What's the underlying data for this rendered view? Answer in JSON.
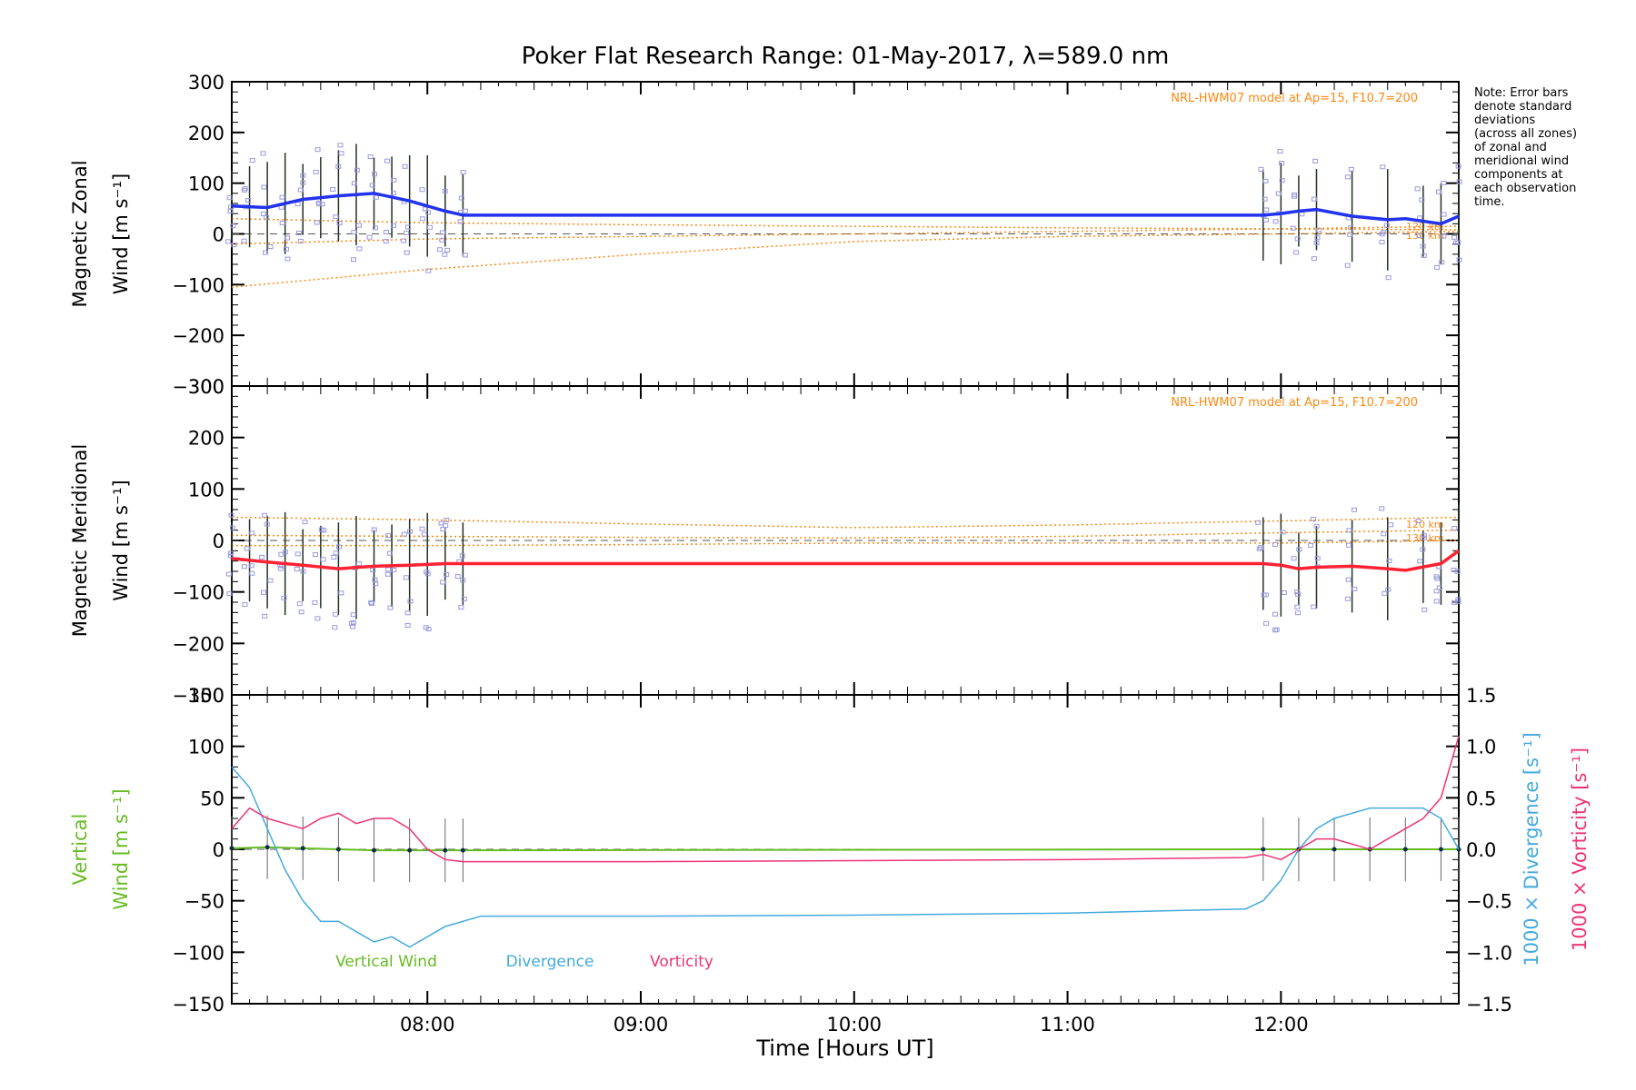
{
  "title": "Poker Flat Research Range: 01-May-2017, λ=589.0 nm",
  "note": [
    "Note: Error bars",
    "denote standard",
    "deviations",
    "(across all zones)",
    "of zonal and",
    "meridional wind",
    "components at",
    "each observation",
    "time."
  ],
  "model_label": "NRL-HWM07 model at Ap=15, F10.7=200",
  "height_labels": [
    "120 km",
    "130 km"
  ],
  "xlabel": "Time [Hours UT]",
  "x_ticks": [
    "08:00",
    "09:00",
    "10:00",
    "11:00",
    "12:00"
  ],
  "colors": {
    "zonal": "#2233ee",
    "meridional": "#ff2233",
    "model": "#ff8811",
    "zone_points": "#9999dd",
    "vertical": "#66bb22",
    "divergence": "#44aadd",
    "vorticity": "#ee3377",
    "vertical_points": "#103040"
  },
  "chart_data": [
    {
      "type": "line",
      "panel": "zonal",
      "ylabel": [
        "Magnetic Zonal",
        "Wind [m s⁻¹]"
      ],
      "y_ticks": [
        "300",
        "200",
        "100",
        "0",
        "−100",
        "−200",
        "−300"
      ],
      "ylim": [
        -300,
        300
      ],
      "xlim": [
        "07:05",
        "12:50"
      ],
      "series": [
        {
          "x": [
            "07:05",
            "07:15",
            "07:25",
            "07:35",
            "07:45",
            "07:55",
            "08:05",
            "08:10",
            "11:55",
            "12:00",
            "12:05",
            "12:10",
            "12:20",
            "12:30",
            "12:35",
            "12:45",
            "12:50"
          ],
          "values": [
            55,
            52,
            68,
            75,
            80,
            65,
            45,
            37,
            37,
            40,
            45,
            48,
            35,
            28,
            30,
            20,
            35
          ]
        }
      ],
      "error_bars_at": [
        "07:05",
        "07:10",
        "07:15",
        "07:20",
        "07:25",
        "07:30",
        "07:35",
        "07:40",
        "07:45",
        "07:50",
        "07:55",
        "08:00",
        "08:05",
        "08:10",
        "11:55",
        "12:00",
        "12:05",
        "12:10",
        "12:20",
        "12:30",
        "12:40",
        "12:45",
        "12:50"
      ],
      "model_curves": [
        {
          "x": [
            "07:05",
            "08:00",
            "09:00",
            "10:00",
            "11:00",
            "12:00",
            "12:50"
          ],
          "values": [
            -105,
            -70,
            -40,
            -15,
            -5,
            0,
            5
          ]
        },
        {
          "x": [
            "07:05",
            "08:00",
            "09:00",
            "10:00",
            "11:00",
            "12:00",
            "12:50"
          ],
          "values": [
            -20,
            -10,
            -5,
            0,
            5,
            10,
            15
          ]
        },
        {
          "x": [
            "07:05",
            "08:00",
            "09:00",
            "10:00",
            "11:00",
            "12:00",
            "12:50"
          ],
          "values": [
            30,
            22,
            18,
            15,
            12,
            10,
            8
          ]
        }
      ]
    },
    {
      "type": "line",
      "panel": "meridional",
      "ylabel": [
        "Magnetic Meridional",
        "Wind [m s⁻¹]"
      ],
      "y_ticks": [
        "300",
        "200",
        "100",
        "0",
        "−100",
        "−200",
        "−300"
      ],
      "ylim": [
        -300,
        300
      ],
      "xlim": [
        "07:05",
        "12:50"
      ],
      "series": [
        {
          "x": [
            "07:05",
            "07:15",
            "07:25",
            "07:35",
            "07:45",
            "07:55",
            "08:05",
            "08:10",
            "11:55",
            "12:00",
            "12:05",
            "12:10",
            "12:20",
            "12:30",
            "12:35",
            "12:45",
            "12:50"
          ],
          "values": [
            -35,
            -42,
            -48,
            -55,
            -50,
            -48,
            -45,
            -45,
            -45,
            -48,
            -55,
            -52,
            -50,
            -55,
            -58,
            -45,
            -20
          ]
        }
      ],
      "error_bars_at": [
        "07:05",
        "07:10",
        "07:15",
        "07:20",
        "07:25",
        "07:30",
        "07:35",
        "07:40",
        "07:45",
        "07:50",
        "07:55",
        "08:00",
        "08:05",
        "08:10",
        "11:55",
        "12:00",
        "12:05",
        "12:10",
        "12:20",
        "12:30",
        "12:40",
        "12:45",
        "12:50"
      ],
      "model_curves": [
        {
          "x": [
            "07:05",
            "08:00",
            "09:00",
            "10:00",
            "11:00",
            "12:00",
            "12:50"
          ],
          "values": [
            45,
            40,
            32,
            25,
            30,
            38,
            45
          ]
        },
        {
          "x": [
            "07:05",
            "08:00",
            "09:00",
            "10:00",
            "11:00",
            "12:00",
            "12:50"
          ],
          "values": [
            10,
            8,
            6,
            5,
            8,
            15,
            20
          ]
        },
        {
          "x": [
            "07:05",
            "08:00",
            "09:00",
            "10:00",
            "11:00",
            "12:00",
            "12:50"
          ],
          "values": [
            -10,
            -10,
            -8,
            -5,
            -5,
            -5,
            0
          ]
        }
      ]
    },
    {
      "type": "line",
      "panel": "vertical",
      "ylabel_left": [
        "Vertical",
        "Wind [m s⁻¹]"
      ],
      "ylabel_right_1": "1000 × Divergence [s⁻¹]",
      "ylabel_right_2": "1000 × Vorticity [s⁻¹]",
      "y_ticks": [
        "150",
        "100",
        "50",
        "0",
        "−50",
        "−100",
        "−150"
      ],
      "y2_ticks": [
        "1.5",
        "1.0",
        "0.5",
        "0.0",
        "−0.5",
        "−1.0",
        "−1.5"
      ],
      "ylim": [
        -150,
        150
      ],
      "y2lim": [
        -1.5,
        1.5
      ],
      "xlim": [
        "07:05",
        "12:50"
      ],
      "legend": [
        "Vertical Wind",
        "Divergence",
        "Vorticity"
      ],
      "series": [
        {
          "name": "Vertical Wind",
          "axis": "left",
          "x": [
            "07:05",
            "07:15",
            "07:25",
            "07:35",
            "07:45",
            "07:55",
            "08:05",
            "08:10",
            "11:55",
            "12:05",
            "12:15",
            "12:25",
            "12:35",
            "12:45",
            "12:50"
          ],
          "values": [
            1,
            2,
            1,
            0,
            -1,
            -1,
            -1,
            -1,
            0,
            0,
            0,
            0,
            0,
            0,
            0
          ]
        },
        {
          "name": "Divergence",
          "axis": "right",
          "x": [
            "07:05",
            "07:10",
            "07:15",
            "07:20",
            "07:25",
            "07:30",
            "07:35",
            "07:40",
            "07:45",
            "07:50",
            "07:55",
            "08:00",
            "08:05",
            "08:10",
            "08:15",
            "09:00",
            "10:00",
            "11:00",
            "11:50",
            "11:55",
            "12:00",
            "12:05",
            "12:10",
            "12:15",
            "12:25",
            "12:35",
            "12:40",
            "12:45",
            "12:50"
          ],
          "values": [
            0.8,
            0.6,
            0.2,
            -0.2,
            -0.5,
            -0.7,
            -0.7,
            -0.8,
            -0.9,
            -0.85,
            -0.95,
            -0.85,
            -0.75,
            -0.7,
            -0.65,
            -0.65,
            -0.64,
            -0.62,
            -0.58,
            -0.5,
            -0.3,
            0.0,
            0.2,
            0.3,
            0.4,
            0.4,
            0.4,
            0.3,
            0.0
          ]
        },
        {
          "name": "Vorticity",
          "axis": "right",
          "x": [
            "07:05",
            "07:10",
            "07:15",
            "07:20",
            "07:25",
            "07:30",
            "07:35",
            "07:40",
            "07:45",
            "07:50",
            "07:55",
            "08:00",
            "08:05",
            "08:10",
            "08:15",
            "09:00",
            "10:00",
            "11:00",
            "11:50",
            "11:55",
            "12:00",
            "12:05",
            "12:10",
            "12:15",
            "12:25",
            "12:35",
            "12:40",
            "12:45",
            "12:50"
          ],
          "values": [
            0.2,
            0.4,
            0.3,
            0.25,
            0.2,
            0.3,
            0.35,
            0.25,
            0.3,
            0.3,
            0.2,
            0.0,
            -0.1,
            -0.12,
            -0.12,
            -0.12,
            -0.11,
            -0.1,
            -0.08,
            -0.05,
            -0.1,
            0.0,
            0.1,
            0.1,
            0.0,
            0.2,
            0.3,
            0.5,
            1.1
          ]
        }
      ]
    }
  ]
}
